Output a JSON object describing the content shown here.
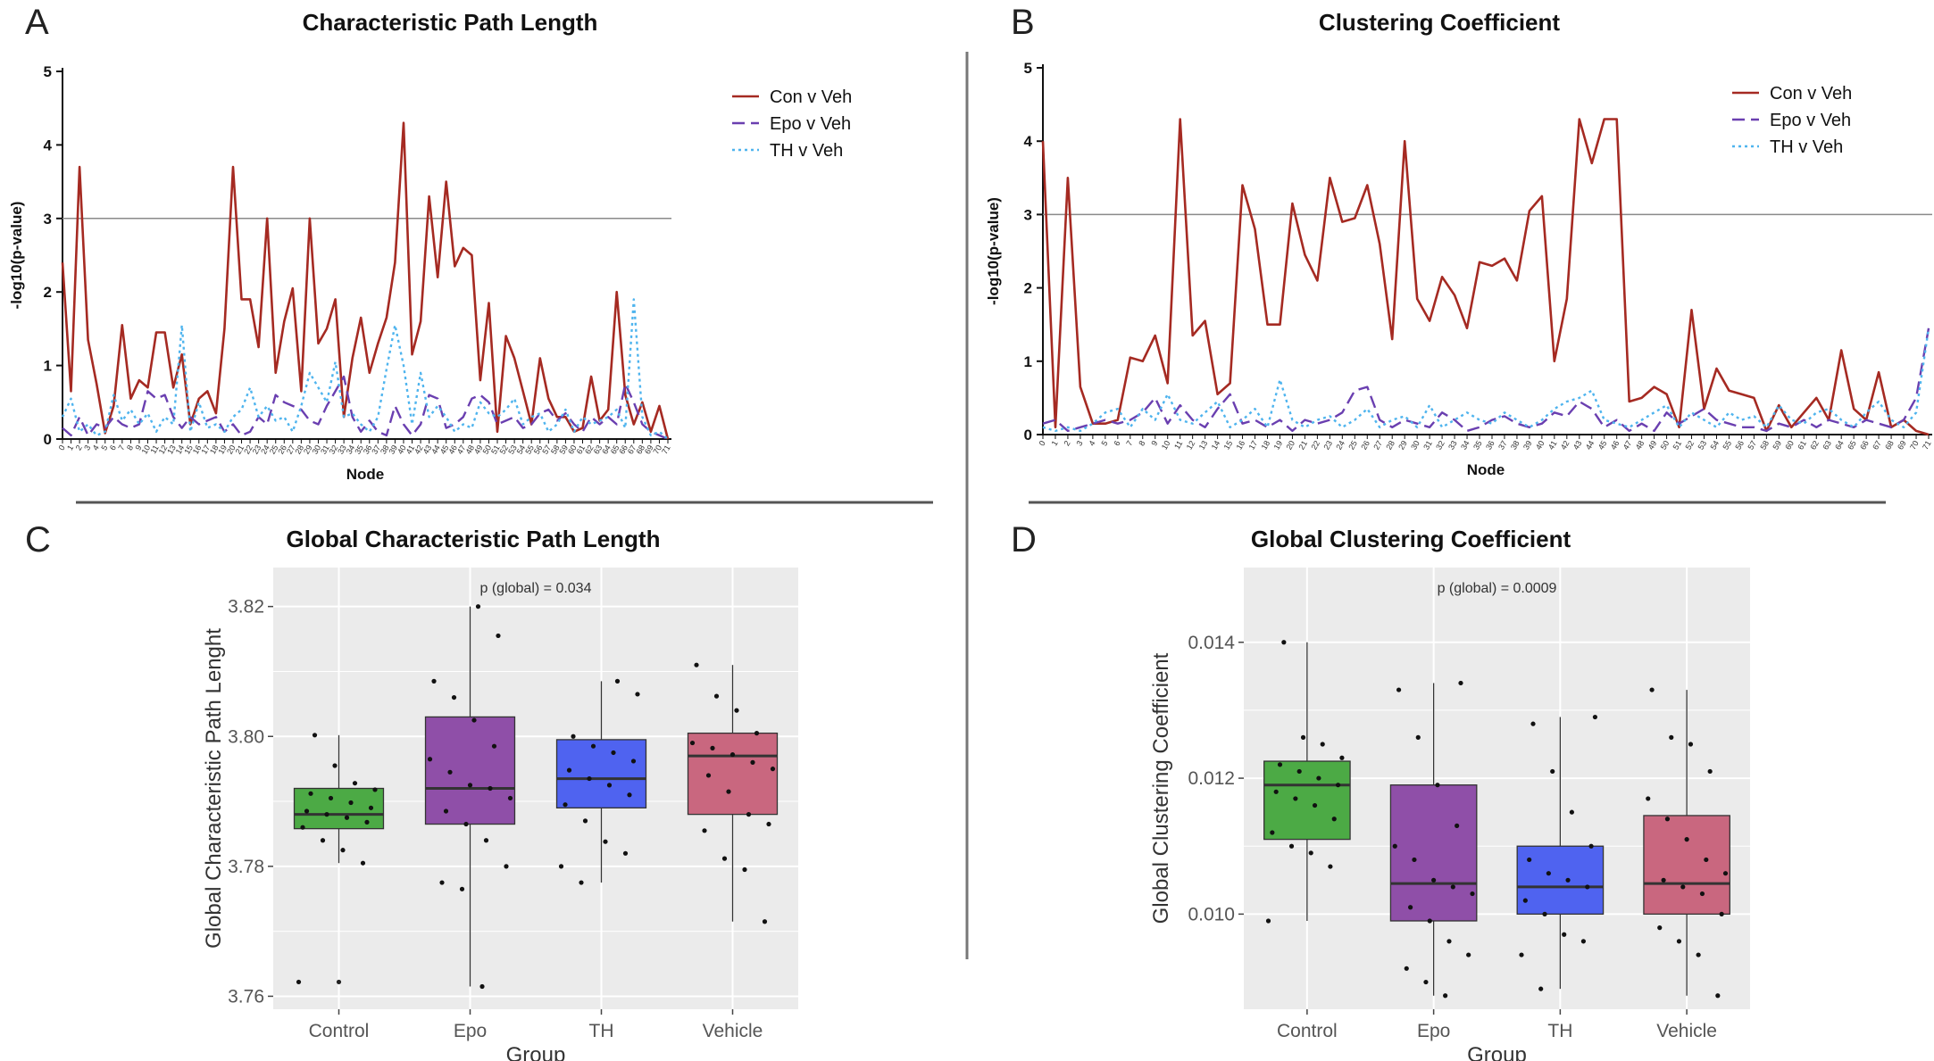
{
  "panels": {
    "A": {
      "letter": "A",
      "title": "Characteristic Path Length"
    },
    "B": {
      "letter": "B",
      "title": "Clustering Coefficient"
    },
    "C": {
      "letter": "C",
      "title": "Global Characteristic Path Length"
    },
    "D": {
      "letter": "D",
      "title": "Global Clustering Coefficient"
    }
  },
  "chart_data": [
    {
      "id": "A",
      "type": "line",
      "title": "Characteristic Path Length",
      "xlabel": "Node",
      "ylabel": "-log10(p-value)",
      "ylim": [
        0,
        5
      ],
      "yticks": [
        0,
        1,
        2,
        3,
        4,
        5
      ],
      "x": [
        0,
        1,
        2,
        3,
        4,
        5,
        6,
        7,
        8,
        9,
        10,
        11,
        12,
        13,
        14,
        15,
        16,
        17,
        18,
        19,
        20,
        21,
        22,
        23,
        24,
        25,
        26,
        27,
        28,
        29,
        30,
        31,
        32,
        33,
        34,
        35,
        36,
        37,
        38,
        39,
        40,
        41,
        42,
        43,
        44,
        45,
        46,
        47,
        48,
        49,
        50,
        51,
        52,
        53,
        54,
        55,
        56,
        57,
        58,
        59,
        60,
        61,
        62,
        63,
        64,
        65,
        66,
        67,
        68,
        69,
        70,
        71
      ],
      "reference_line": 3,
      "legend_position": "top-right",
      "series": [
        {
          "name": "Con v Veh",
          "color": "#a52a22",
          "style": "solid",
          "values": [
            2.4,
            0.65,
            3.7,
            1.35,
            0.75,
            0.08,
            0.45,
            1.55,
            0.55,
            0.8,
            0.7,
            1.45,
            1.45,
            0.7,
            1.15,
            0.2,
            0.55,
            0.65,
            0.35,
            1.5,
            3.7,
            1.9,
            1.9,
            1.25,
            3.0,
            0.9,
            1.6,
            2.05,
            0.65,
            3.0,
            1.3,
            1.5,
            1.9,
            0.3,
            1.1,
            1.65,
            0.9,
            1.3,
            1.65,
            2.4,
            4.3,
            1.15,
            1.6,
            3.3,
            2.2,
            3.5,
            2.35,
            2.6,
            2.5,
            0.8,
            1.85,
            0.1,
            1.4,
            1.1,
            0.65,
            0.2,
            1.1,
            0.55,
            0.3,
            0.3,
            0.1,
            0.15,
            0.85,
            0.25,
            0.4,
            2.0,
            0.6,
            0.2,
            0.5,
            0.1,
            0.45,
            0.0
          ]
        },
        {
          "name": "Epo v Veh",
          "color": "#6a3fb0",
          "style": "dashed",
          "values": [
            0.15,
            0.05,
            0.3,
            0.05,
            0.2,
            0.15,
            0.3,
            0.2,
            0.15,
            0.2,
            0.65,
            0.55,
            0.6,
            0.3,
            0.15,
            0.3,
            0.2,
            0.25,
            0.3,
            0.1,
            0.2,
            0.05,
            0.1,
            0.3,
            0.2,
            0.6,
            0.5,
            0.45,
            0.4,
            0.25,
            0.2,
            0.45,
            0.65,
            0.85,
            0.3,
            0.1,
            0.25,
            0.1,
            0.05,
            0.45,
            0.2,
            0.05,
            0.2,
            0.6,
            0.55,
            0.15,
            0.2,
            0.3,
            0.55,
            0.6,
            0.5,
            0.2,
            0.25,
            0.3,
            0.15,
            0.2,
            0.35,
            0.4,
            0.25,
            0.35,
            0.2,
            0.1,
            0.3,
            0.2,
            0.3,
            0.2,
            0.75,
            0.5,
            0.2,
            0.1,
            0.05,
            0.0
          ]
        },
        {
          "name": "TH v Veh",
          "color": "#4fb4ee",
          "style": "dotted",
          "values": [
            0.3,
            0.55,
            0.1,
            0.2,
            0.05,
            0.1,
            0.6,
            0.25,
            0.4,
            0.2,
            0.35,
            0.1,
            0.3,
            0.2,
            1.55,
            0.1,
            0.5,
            0.15,
            0.2,
            0.1,
            0.3,
            0.4,
            0.7,
            0.3,
            0.45,
            0.25,
            0.3,
            0.1,
            0.45,
            0.9,
            0.7,
            0.5,
            1.05,
            0.3,
            0.35,
            0.2,
            0.1,
            0.3,
            0.95,
            1.55,
            1.0,
            0.2,
            0.9,
            0.3,
            0.45,
            0.3,
            0.1,
            0.2,
            0.15,
            0.5,
            0.35,
            0.3,
            0.4,
            0.55,
            0.2,
            0.3,
            0.35,
            0.1,
            0.2,
            0.4,
            0.1,
            0.3,
            0.2,
            0.25,
            0.3,
            0.4,
            0.15,
            1.9,
            0.3,
            0.05,
            0.1,
            0.0
          ]
        }
      ]
    },
    {
      "id": "B",
      "type": "line",
      "title": "Clustering Coefficient",
      "xlabel": "Node",
      "ylabel": "-log10(p-value)",
      "ylim": [
        0,
        5
      ],
      "yticks": [
        0,
        1,
        2,
        3,
        4,
        5
      ],
      "x": [
        0,
        1,
        2,
        3,
        4,
        5,
        6,
        7,
        8,
        9,
        10,
        11,
        12,
        13,
        14,
        15,
        16,
        17,
        18,
        19,
        20,
        21,
        22,
        23,
        24,
        25,
        26,
        27,
        28,
        29,
        30,
        31,
        32,
        33,
        34,
        35,
        36,
        37,
        38,
        39,
        40,
        41,
        42,
        43,
        44,
        45,
        46,
        47,
        48,
        49,
        50,
        51,
        52,
        53,
        54,
        55,
        56,
        57,
        58,
        59,
        60,
        61,
        62,
        63,
        64,
        65,
        66,
        67,
        68,
        69,
        70,
        71
      ],
      "reference_line": 3,
      "legend_position": "top-right",
      "series": [
        {
          "name": "Con v Veh",
          "color": "#a52a22",
          "style": "solid",
          "values": [
            4.0,
            0.1,
            3.5,
            0.65,
            0.15,
            0.15,
            0.2,
            1.05,
            1.0,
            1.35,
            0.7,
            4.3,
            1.35,
            1.55,
            0.55,
            0.7,
            3.4,
            2.8,
            1.5,
            1.5,
            3.15,
            2.45,
            2.1,
            3.5,
            2.9,
            2.95,
            3.4,
            2.6,
            1.3,
            4.0,
            1.85,
            1.55,
            2.15,
            1.9,
            1.45,
            2.35,
            2.3,
            2.4,
            2.1,
            3.05,
            3.25,
            1.0,
            1.85,
            4.3,
            3.7,
            4.3,
            4.3,
            0.45,
            0.5,
            0.65,
            0.55,
            0.1,
            1.7,
            0.35,
            0.9,
            0.6,
            0.55,
            0.5,
            0.05,
            0.4,
            0.1,
            0.3,
            0.5,
            0.2,
            1.15,
            0.35,
            0.2,
            0.85,
            0.1,
            0.2,
            0.05,
            0.0
          ]
        },
        {
          "name": "Epo v Veh",
          "color": "#6a3fb0",
          "style": "dashed",
          "values": [
            0.15,
            0.2,
            0.05,
            0.1,
            0.15,
            0.2,
            0.15,
            0.2,
            0.3,
            0.5,
            0.15,
            0.4,
            0.2,
            0.1,
            0.35,
            0.55,
            0.15,
            0.2,
            0.1,
            0.2,
            0.05,
            0.2,
            0.15,
            0.2,
            0.3,
            0.6,
            0.65,
            0.2,
            0.1,
            0.2,
            0.15,
            0.1,
            0.3,
            0.2,
            0.05,
            0.1,
            0.2,
            0.25,
            0.15,
            0.1,
            0.15,
            0.3,
            0.25,
            0.45,
            0.35,
            0.1,
            0.2,
            0.05,
            0.15,
            0.05,
            0.3,
            0.15,
            0.25,
            0.35,
            0.2,
            0.15,
            0.1,
            0.1,
            0.05,
            0.15,
            0.1,
            0.2,
            0.1,
            0.2,
            0.15,
            0.1,
            0.2,
            0.15,
            0.1,
            0.2,
            0.5,
            1.45
          ]
        },
        {
          "name": "TH v Veh",
          "color": "#4fb4ee",
          "style": "dotted",
          "values": [
            0.1,
            0.05,
            0.1,
            0.05,
            0.15,
            0.3,
            0.35,
            0.1,
            0.35,
            0.2,
            0.55,
            0.2,
            0.15,
            0.3,
            0.45,
            0.1,
            0.2,
            0.35,
            0.1,
            0.75,
            0.2,
            0.1,
            0.2,
            0.25,
            0.1,
            0.2,
            0.35,
            0.1,
            0.2,
            0.25,
            0.1,
            0.4,
            0.1,
            0.2,
            0.3,
            0.2,
            0.15,
            0.3,
            0.2,
            0.1,
            0.2,
            0.35,
            0.45,
            0.5,
            0.6,
            0.2,
            0.15,
            0.1,
            0.2,
            0.3,
            0.4,
            0.1,
            0.3,
            0.2,
            0.1,
            0.3,
            0.2,
            0.25,
            0.1,
            0.4,
            0.2,
            0.15,
            0.3,
            0.35,
            0.2,
            0.1,
            0.3,
            0.45,
            0.2,
            0.1,
            0.3,
            1.45
          ]
        }
      ]
    },
    {
      "id": "C",
      "type": "box",
      "title": "Global Characteristic Path Length",
      "xlabel": "Group",
      "ylabel": "Global Characteristic Path Lenght",
      "ylim": [
        3.758,
        3.826
      ],
      "yticks": [
        3.76,
        3.78,
        3.8,
        3.82
      ],
      "ytick_labels": [
        "3.76",
        "3.78",
        "3.80",
        "3.82"
      ],
      "annotation": "p (global) = 0.034",
      "categories": [
        "Control",
        "Epo",
        "TH",
        "Vehicle"
      ],
      "colors": [
        "#4caa45",
        "#8f4fa8",
        "#4f63f0",
        "#c9677f"
      ],
      "boxes": [
        {
          "min": 3.7805,
          "q1": 3.7858,
          "median": 3.788,
          "q3": 3.792,
          "max": 3.8002,
          "outliers": [
            3.7622
          ]
        },
        {
          "min": 3.7615,
          "q1": 3.7865,
          "median": 3.792,
          "q3": 3.803,
          "max": 3.82,
          "outliers": []
        },
        {
          "min": 3.7775,
          "q1": 3.789,
          "median": 3.7935,
          "q3": 3.7995,
          "max": 3.8085,
          "outliers": []
        },
        {
          "min": 3.7715,
          "q1": 3.788,
          "median": 3.797,
          "q3": 3.8005,
          "max": 3.811,
          "outliers": []
        }
      ],
      "points": [
        [
          3.7622,
          3.7805,
          3.7825,
          3.784,
          3.786,
          3.7868,
          3.7875,
          3.788,
          3.7885,
          3.789,
          3.7898,
          3.7905,
          3.7912,
          3.7918,
          3.7928,
          3.7955,
          3.8002
        ],
        [
          3.7615,
          3.7765,
          3.7775,
          3.78,
          3.784,
          3.7865,
          3.7885,
          3.7905,
          3.792,
          3.7925,
          3.7945,
          3.7965,
          3.7985,
          3.8025,
          3.806,
          3.8085,
          3.8155,
          3.82
        ],
        [
          3.7775,
          3.78,
          3.782,
          3.7838,
          3.787,
          3.7895,
          3.791,
          3.7925,
          3.7935,
          3.7948,
          3.7962,
          3.7975,
          3.7985,
          3.8,
          3.8065,
          3.8085
        ],
        [
          3.7715,
          3.7795,
          3.7812,
          3.7855,
          3.7865,
          3.788,
          3.7915,
          3.794,
          3.795,
          3.796,
          3.7972,
          3.7982,
          3.799,
          3.8005,
          3.804,
          3.8062,
          3.811
        ]
      ]
    },
    {
      "id": "D",
      "type": "box",
      "title": "Global Clustering Coefficient",
      "xlabel": "Group",
      "ylabel": "Global Clustering Coefficient",
      "ylim": [
        0.0086,
        0.0151
      ],
      "yticks": [
        0.01,
        0.012,
        0.014
      ],
      "ytick_labels": [
        "0.010",
        "0.012",
        "0.014"
      ],
      "annotation": "p (global) = 0.0009",
      "categories": [
        "Control",
        "Epo",
        "TH",
        "Vehicle"
      ],
      "colors": [
        "#4caa45",
        "#8f4fa8",
        "#4f63f0",
        "#c9677f"
      ],
      "boxes": [
        {
          "min": 0.0099,
          "q1": 0.0111,
          "median": 0.0119,
          "q3": 0.01225,
          "max": 0.014,
          "outliers": []
        },
        {
          "min": 0.0088,
          "q1": 0.0099,
          "median": 0.01045,
          "q3": 0.0119,
          "max": 0.0134,
          "outliers": []
        },
        {
          "min": 0.0089,
          "q1": 0.01,
          "median": 0.0104,
          "q3": 0.011,
          "max": 0.0129,
          "outliers": []
        },
        {
          "min": 0.0088,
          "q1": 0.01,
          "median": 0.01045,
          "q3": 0.01145,
          "max": 0.0133,
          "outliers": []
        }
      ],
      "points": [
        [
          0.0099,
          0.0107,
          0.0109,
          0.011,
          0.0112,
          0.0114,
          0.0116,
          0.0117,
          0.0118,
          0.0119,
          0.012,
          0.0121,
          0.0122,
          0.0123,
          0.0125,
          0.0126,
          0.014
        ],
        [
          0.0088,
          0.009,
          0.0092,
          0.0094,
          0.0096,
          0.0099,
          0.0101,
          0.0103,
          0.0104,
          0.0105,
          0.0108,
          0.011,
          0.0113,
          0.0119,
          0.0126,
          0.0133,
          0.0134
        ],
        [
          0.0089,
          0.0094,
          0.0096,
          0.0097,
          0.01,
          0.0102,
          0.0104,
          0.0105,
          0.0106,
          0.0108,
          0.011,
          0.0115,
          0.0121,
          0.0128,
          0.0129
        ],
        [
          0.0088,
          0.0094,
          0.0096,
          0.0098,
          0.01,
          0.0103,
          0.0104,
          0.0105,
          0.0106,
          0.0108,
          0.0111,
          0.0114,
          0.0117,
          0.0121,
          0.0125,
          0.0126,
          0.0133
        ]
      ]
    }
  ]
}
